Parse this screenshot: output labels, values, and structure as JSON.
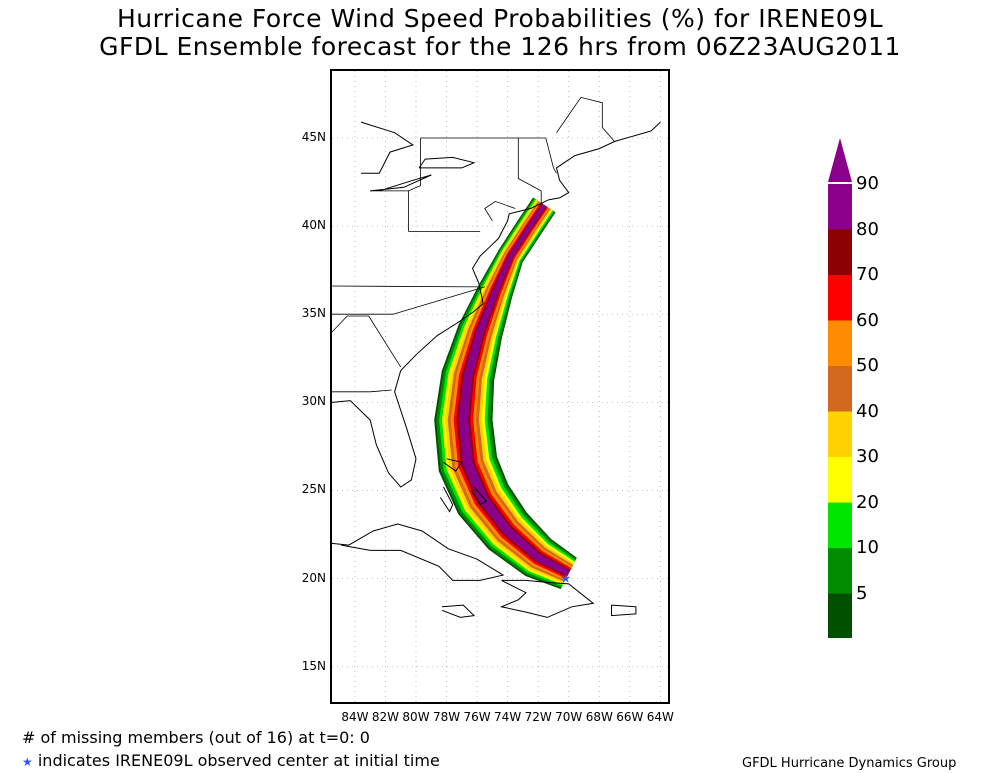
{
  "title": {
    "line1": "Hurricane Force Wind Speed Probabilities (%) for IRENE09L",
    "line2": "GFDL Ensemble forecast for the 126 hrs from 06Z23AUG2011"
  },
  "map": {
    "lon_range": [
      -85.5,
      -63.5
    ],
    "lat_range": [
      13,
      48.8
    ],
    "lat_ticks": [
      {
        "value": 45,
        "label": "45N"
      },
      {
        "value": 40,
        "label": "40N"
      },
      {
        "value": 35,
        "label": "35N"
      },
      {
        "value": 30,
        "label": "30N"
      },
      {
        "value": 25,
        "label": "25N"
      },
      {
        "value": 20,
        "label": "20N"
      },
      {
        "value": 15,
        "label": "15N"
      }
    ],
    "lon_ticks": [
      {
        "value": -84,
        "label": "84W"
      },
      {
        "value": -82,
        "label": "82W"
      },
      {
        "value": -80,
        "label": "80W"
      },
      {
        "value": -78,
        "label": "78W"
      },
      {
        "value": -76,
        "label": "76W"
      },
      {
        "value": -74,
        "label": "74W"
      },
      {
        "value": -72,
        "label": "72W"
      },
      {
        "value": -70,
        "label": "70W"
      },
      {
        "value": -68,
        "label": "68W"
      },
      {
        "value": -66,
        "label": "66W"
      },
      {
        "value": -64,
        "label": "64W"
      }
    ],
    "observed_center": {
      "lon": -70.2,
      "lat": 20.0
    },
    "track": [
      {
        "lon": -70.0,
        "lat": 20.3
      },
      {
        "lon": -72.0,
        "lat": 21.2
      },
      {
        "lon": -74.0,
        "lat": 22.7
      },
      {
        "lon": -75.6,
        "lat": 24.5
      },
      {
        "lon": -76.6,
        "lat": 26.5
      },
      {
        "lon": -76.9,
        "lat": 29.0
      },
      {
        "lon": -76.6,
        "lat": 31.5
      },
      {
        "lon": -75.8,
        "lat": 34.0
      },
      {
        "lon": -74.8,
        "lat": 36.3
      },
      {
        "lon": -73.8,
        "lat": 38.3
      },
      {
        "lon": -72.6,
        "lat": 39.9
      },
      {
        "lon": -71.6,
        "lat": 41.2
      }
    ]
  },
  "colorbar": {
    "levels": [
      {
        "label": "5",
        "color": "#005000"
      },
      {
        "label": "10",
        "color": "#008c00"
      },
      {
        "label": "20",
        "color": "#00e600"
      },
      {
        "label": "30",
        "color": "#ffff00"
      },
      {
        "label": "40",
        "color": "#ffd200"
      },
      {
        "label": "50",
        "color": "#d2691e"
      },
      {
        "label": "60",
        "color": "#ff8c00"
      },
      {
        "label": "70",
        "color": "#ff0000"
      },
      {
        "label": "80",
        "color": "#8b0000"
      },
      {
        "label": "90",
        "color": "#8b008b"
      }
    ]
  },
  "footnotes": {
    "missing_members": "# of missing members (out of 16) at t=0: 0",
    "star_symbol": "★",
    "star_text": "indicates IRENE09L observed center at initial time"
  },
  "credit": "GFDL Hurricane Dynamics Group"
}
